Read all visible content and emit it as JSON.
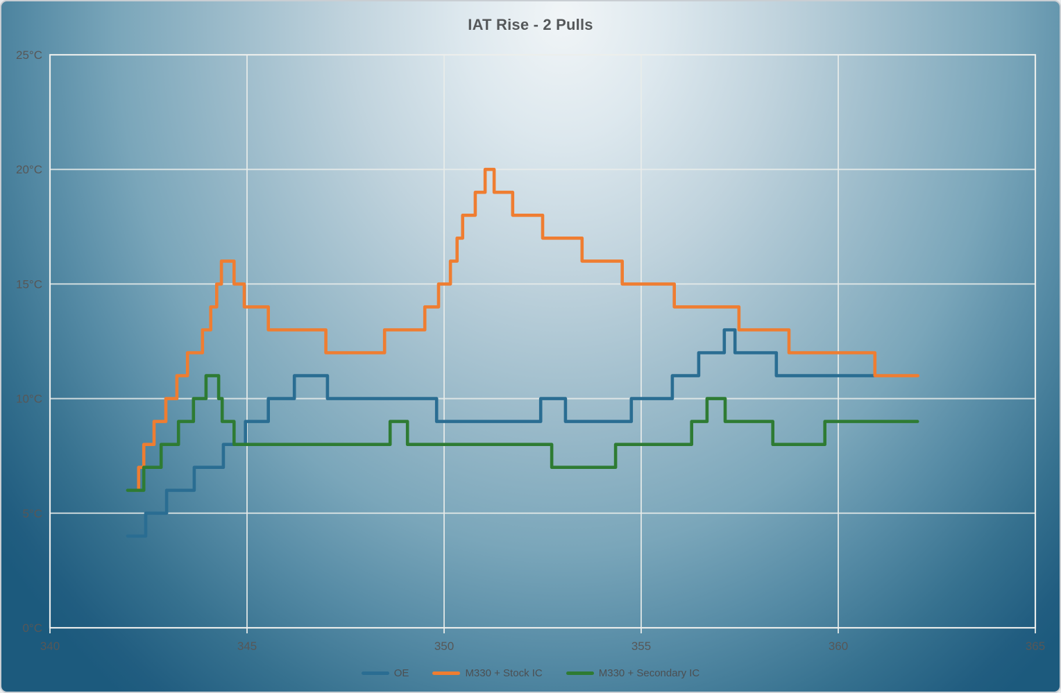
{
  "chart_data": {
    "type": "line",
    "step": true,
    "title": "IAT Rise - 2 Pulls",
    "xlabel": "",
    "ylabel": "",
    "xlim": [
      340,
      365
    ],
    "ylim": [
      0,
      25
    ],
    "grid": true,
    "legend_position": "bottom",
    "x_ticks": [
      340,
      345,
      350,
      355,
      360,
      365
    ],
    "y_ticks": [
      {
        "value": 0,
        "label": "0°C"
      },
      {
        "value": 5,
        "label": "5°C"
      },
      {
        "value": 10,
        "label": "10°C"
      },
      {
        "value": 15,
        "label": "15°C"
      },
      {
        "value": 20,
        "label": "20°C"
      },
      {
        "value": 25,
        "label": "25°C"
      }
    ],
    "series": [
      {
        "name": "OE",
        "color": "#2a6d92",
        "points": [
          [
            341.97,
            4
          ],
          [
            342.43,
            5
          ],
          [
            342.96,
            6
          ],
          [
            343.66,
            7
          ],
          [
            344.4,
            8
          ],
          [
            344.96,
            9
          ],
          [
            345.54,
            10
          ],
          [
            346.2,
            11
          ],
          [
            347.04,
            10
          ],
          [
            349.81,
            9
          ],
          [
            352.45,
            10
          ],
          [
            353.08,
            9
          ],
          [
            354.75,
            10
          ],
          [
            355.79,
            11
          ],
          [
            356.46,
            12
          ],
          [
            357.11,
            13
          ],
          [
            357.38,
            12
          ],
          [
            358.43,
            11
          ],
          [
            360.92,
            11
          ]
        ]
      },
      {
        "name": "M330 + Stock IC",
        "color": "#ef7d31",
        "points": [
          [
            342.15,
            6
          ],
          [
            342.25,
            7
          ],
          [
            342.38,
            8
          ],
          [
            342.64,
            9
          ],
          [
            342.94,
            10
          ],
          [
            343.22,
            11
          ],
          [
            343.49,
            12
          ],
          [
            343.87,
            13
          ],
          [
            344.08,
            14
          ],
          [
            344.23,
            15
          ],
          [
            344.35,
            16
          ],
          [
            344.67,
            15
          ],
          [
            344.93,
            14
          ],
          [
            345.54,
            13
          ],
          [
            347.0,
            12
          ],
          [
            348.49,
            13
          ],
          [
            349.51,
            14
          ],
          [
            349.86,
            15
          ],
          [
            350.16,
            16
          ],
          [
            350.33,
            17
          ],
          [
            350.47,
            18
          ],
          [
            350.79,
            19
          ],
          [
            351.04,
            20
          ],
          [
            351.27,
            19
          ],
          [
            351.74,
            18
          ],
          [
            352.5,
            17
          ],
          [
            353.5,
            16
          ],
          [
            354.52,
            15
          ],
          [
            355.84,
            14
          ],
          [
            357.48,
            13
          ],
          [
            358.75,
            12
          ],
          [
            360.93,
            11
          ],
          [
            362.02,
            11
          ]
        ]
      },
      {
        "name": "M330 + Secondary IC",
        "color": "#2e7b33",
        "points": [
          [
            341.97,
            6
          ],
          [
            342.38,
            7
          ],
          [
            342.82,
            8
          ],
          [
            343.26,
            9
          ],
          [
            343.64,
            10
          ],
          [
            343.96,
            11
          ],
          [
            344.28,
            10
          ],
          [
            344.37,
            9
          ],
          [
            344.67,
            8
          ],
          [
            348.63,
            9
          ],
          [
            349.07,
            8
          ],
          [
            352.73,
            7
          ],
          [
            354.35,
            8
          ],
          [
            356.28,
            9
          ],
          [
            356.67,
            10
          ],
          [
            357.13,
            9
          ],
          [
            358.34,
            8
          ],
          [
            359.66,
            9
          ],
          [
            362.01,
            9
          ]
        ]
      }
    ]
  }
}
